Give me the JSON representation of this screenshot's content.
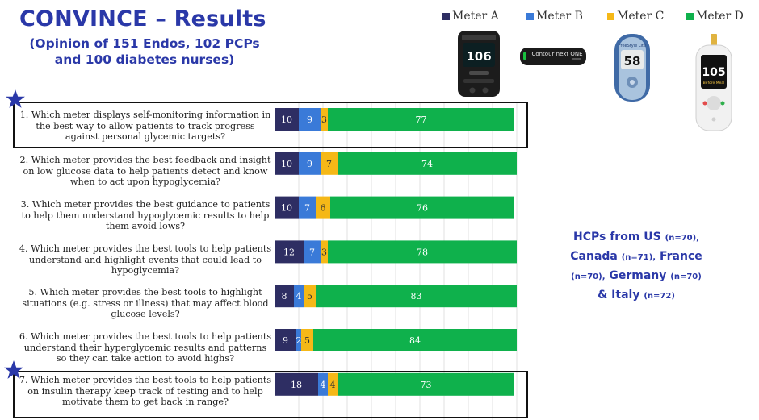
{
  "title": "CONVINCE – Results",
  "subtitle": "(Opinion of 151 Endos, 102 PCPs and 100 diabetes nurses)",
  "colors": {
    "meter_a": "#2e2e63",
    "meter_b": "#3a7ad8",
    "meter_c": "#f5b817",
    "meter_d": "#0fb14c",
    "title": "#2a38a8"
  },
  "legend": [
    {
      "label": "Meter A",
      "color": "#2e2e63"
    },
    {
      "label": "Meter B",
      "color": "#3a7ad8"
    },
    {
      "label": "Meter C",
      "color": "#f5b817"
    },
    {
      "label": "Meter D",
      "color": "#0fb14c"
    }
  ],
  "devices": {
    "meter_a": {
      "icon": "glucose-meter-icon",
      "reading": "106"
    },
    "meter_b": {
      "icon": "glucose-meter-icon",
      "text": "Contour next ONE"
    },
    "meter_c": {
      "icon": "glucose-meter-icon",
      "brand": "FreeStyle Lite",
      "reading": "58"
    },
    "meter_d": {
      "icon": "glucose-meter-icon",
      "reading": "105",
      "label": "Before Meal"
    }
  },
  "hcp": {
    "line1_main": "HCPs from US",
    "line1_n": "(n=70),",
    "line2_main": "Canada",
    "line2_n": "(n=71),",
    "line2_tail": "France",
    "line3_n": "(n=70),",
    "line3_main": "Germany",
    "line3_n2": "(n=70)",
    "line4_main": "& Italy",
    "line4_n": "(n=72)"
  },
  "chart_data": {
    "type": "bar",
    "orientation": "horizontal",
    "stacked": true,
    "xlim": [
      0,
      100
    ],
    "grid": true,
    "legend_position": "top-right",
    "categories": [
      "1. Which meter displays self-monitoring information in the best way to allow patients to track progress against personal glycemic targets?",
      "2. Which meter provides the best feedback and insight on low glucose data to help patients detect and know when to act upon hypoglycemia?",
      "3. Which meter provides the best guidance to patients to help them understand hypoglycemic results to help them avoid lows?",
      "4. Which meter provides the best tools to help patients understand and highlight events that could lead to hypoglycemia?",
      "5. Which meter provides the best tools to highlight situations (e.g. stress or illness) that may affect blood glucose levels?",
      "6. Which meter provides the best tools to help patients understand their hyperglycemic results and patterns so they can take action to avoid highs?",
      "7. Which meter provides the best tools to help patients on insulin therapy keep track of testing and to help motivate them to get back in range?"
    ],
    "series": [
      {
        "name": "Meter A",
        "color": "#2e2e63",
        "values": [
          10,
          10,
          10,
          12,
          8,
          9,
          18
        ]
      },
      {
        "name": "Meter B",
        "color": "#3a7ad8",
        "values": [
          9,
          9,
          7,
          7,
          4,
          2,
          4
        ]
      },
      {
        "name": "Meter C",
        "color": "#f5b817",
        "values": [
          3,
          7,
          6,
          3,
          5,
          5,
          4
        ]
      },
      {
        "name": "Meter D",
        "color": "#0fb14c",
        "values": [
          77,
          74,
          76,
          78,
          83,
          84,
          73
        ]
      }
    ],
    "highlighted_questions": [
      1,
      7
    ]
  }
}
